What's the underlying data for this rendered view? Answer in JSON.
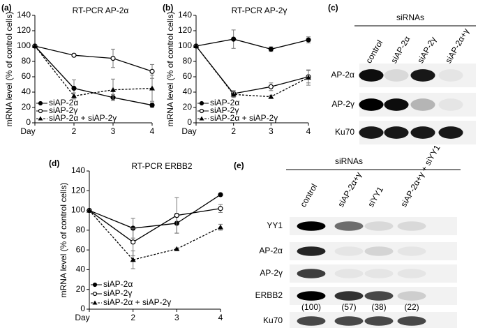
{
  "chart_data": [
    {
      "type": "line",
      "panel": "(a)",
      "title": "RT-PCR AP-2α",
      "ylabel": "mRNA level (% of control cells)",
      "x": [
        1,
        2,
        3,
        4
      ],
      "xlim": [
        1,
        4
      ],
      "xticks": [
        {
          "value": 1,
          "label": "Day"
        },
        2,
        3,
        4
      ],
      "ylim": [
        0,
        140
      ],
      "yticks": [
        0,
        20,
        40,
        60,
        80,
        100,
        120,
        140
      ],
      "series": [
        {
          "name": "siAP-2α",
          "color": "#000000",
          "marker": "circle-filled",
          "linestyle": "solid",
          "values": [
            100,
            45,
            33,
            23
          ],
          "errors": [
            null,
            11,
            4,
            3
          ]
        },
        {
          "name": "siAP-2γ",
          "color": "#000000",
          "marker": "circle-open",
          "linestyle": "solid",
          "values": [
            100,
            88,
            84,
            67
          ],
          "errors": [
            null,
            2,
            12,
            9
          ]
        },
        {
          "name": "siAP-2α + siAP-2γ",
          "color": "#000000",
          "marker": "triangle",
          "linestyle": "dotted",
          "values": [
            100,
            35,
            43,
            45
          ],
          "errors": [
            null,
            4,
            14,
            17
          ]
        }
      ]
    },
    {
      "type": "line",
      "panel": "(b)",
      "title": "RT-PCR AP-2γ",
      "ylabel": "mRNA level (% of control cells)",
      "x": [
        1,
        2,
        3,
        4
      ],
      "xlim": [
        1,
        4
      ],
      "xticks": [
        {
          "value": 1,
          "label": "Day"
        },
        2,
        3,
        4
      ],
      "ylim": [
        0,
        140
      ],
      "yticks": [
        0,
        20,
        40,
        60,
        80,
        100,
        120,
        140
      ],
      "series": [
        {
          "name": "siAP-2α",
          "color": "#000000",
          "marker": "circle-filled",
          "linestyle": "solid",
          "values": [
            100,
            109,
            96,
            108
          ],
          "errors": [
            null,
            12,
            3,
            4
          ]
        },
        {
          "name": "siAP-2γ",
          "color": "#000000",
          "marker": "circle-open",
          "linestyle": "solid",
          "values": [
            100,
            38,
            47,
            60
          ],
          "errors": [
            null,
            4,
            5,
            8
          ]
        },
        {
          "name": "siAP-2α + siAP-2γ",
          "color": "#000000",
          "marker": "triangle",
          "linestyle": "dotted",
          "values": [
            100,
            37,
            34,
            59
          ],
          "errors": [
            null,
            4,
            2,
            10
          ]
        }
      ]
    },
    {
      "type": "line",
      "panel": "(d)",
      "title": "RT-PCR ERBB2",
      "ylabel": "mRNA level (% of control cells)",
      "x": [
        1,
        2,
        3,
        4
      ],
      "xlim": [
        1,
        4
      ],
      "xticks": [
        {
          "value": 1,
          "label": "Day"
        },
        2,
        3,
        4
      ],
      "ylim": [
        0,
        140
      ],
      "yticks": [
        0,
        20,
        40,
        60,
        80,
        100,
        120,
        140
      ],
      "series": [
        {
          "name": "siAP-2α",
          "color": "#000000",
          "marker": "circle-filled",
          "linestyle": "solid",
          "values": [
            100,
            82,
            87,
            116
          ],
          "errors": [
            null,
            10,
            10,
            1
          ]
        },
        {
          "name": "siAP-2γ",
          "color": "#000000",
          "marker": "circle-open",
          "linestyle": "solid",
          "values": [
            100,
            68,
            95,
            102
          ],
          "errors": [
            null,
            14,
            18,
            4
          ]
        },
        {
          "name": "siAP-2α + siAP-2γ",
          "color": "#000000",
          "marker": "triangle",
          "linestyle": "dotted",
          "values": [
            100,
            50,
            61,
            83
          ],
          "errors": [
            null,
            9,
            1,
            3
          ]
        }
      ]
    }
  ],
  "blots": [
    {
      "panel": "(c)",
      "header": "siRNAs",
      "lanes": [
        "control",
        "siAP-2α",
        "siAP-2γ",
        "siAP-2α+γ"
      ],
      "rows": [
        "AP-2α",
        "AP-2γ",
        "Ku70"
      ]
    },
    {
      "panel": "(e)",
      "header": "siRNAs",
      "lanes": [
        "control",
        "siAP-2α+γ",
        "siYY1",
        "siAP-2α+γ + siYY1"
      ],
      "rows": [
        "YY1",
        "AP-2α",
        "AP-2γ",
        "ERBB2",
        "Ku70"
      ],
      "quantification": [
        "(100)",
        "(57)",
        "(38)",
        "(22)"
      ]
    }
  ]
}
